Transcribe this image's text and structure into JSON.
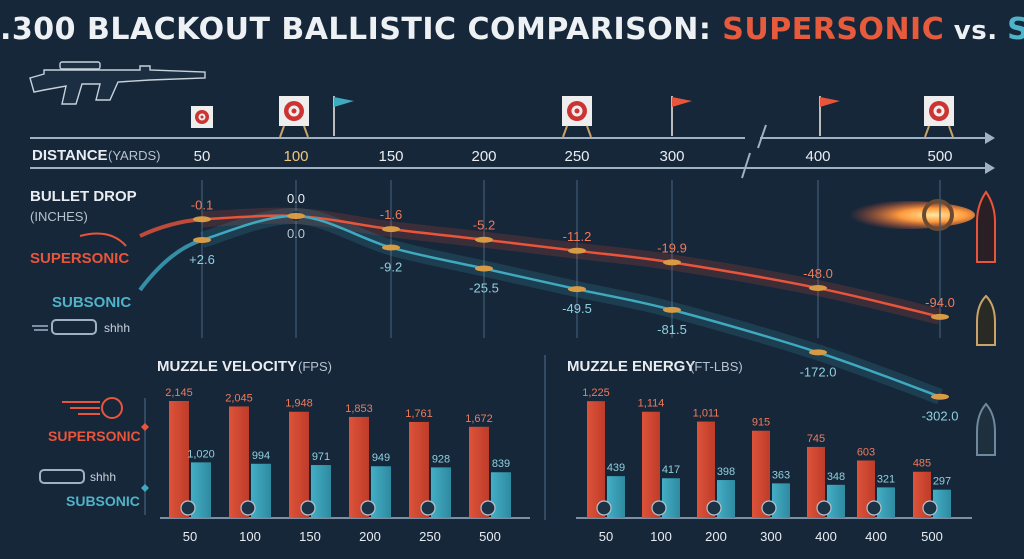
{
  "title": {
    "main": ".300 BLACKOUT BALLISTIC COMPARISON: ",
    "supersonic": "SUPERSONIC",
    "vs": " vs. ",
    "subsonic": "SUBSONIC"
  },
  "colors": {
    "background": "#16273a",
    "supersonic": "#e8553a",
    "subsonic": "#3fa9bf",
    "text": "#e9edf2",
    "grid": "#3d5670"
  },
  "distance_axis": {
    "label": "DISTANCE",
    "unit": "(YARDS)",
    "ticks": [
      "50",
      "100",
      "150",
      "200",
      "250",
      "300",
      "400",
      "500"
    ]
  },
  "side_labels": {
    "drop_label": "BULLET DROP",
    "drop_unit": "(INCHES)",
    "supersonic": "SUPERSONIC",
    "subsonic": "SUBSONIC",
    "shhh": "shhh"
  },
  "chart_data": [
    {
      "type": "line",
      "ylabel": "BULLET DROP (INCHES)",
      "xlabel": "DISTANCE (YARDS)",
      "x": [
        50,
        100,
        150,
        200,
        250,
        300,
        400,
        500
      ],
      "series": [
        {
          "name": "SUPERSONIC",
          "values": [
            -0.1,
            0.0,
            -1.6,
            -5.2,
            -11.2,
            -19.9,
            -48.0,
            -94.0
          ],
          "labels": [
            "-0.1",
            "0.0",
            "-1.6",
            "-5.2",
            "-11.2",
            "-19.9",
            "-48.0",
            "-94.0"
          ]
        },
        {
          "name": "SUBSONIC",
          "values": [
            2.6,
            0.0,
            -9.2,
            -25.5,
            -49.5,
            -81.5,
            -172.0,
            -302.0
          ],
          "labels": [
            "+2.6",
            "0.0",
            "-9.2",
            "-25.5",
            "-49.5",
            "-81.5",
            "-172.0",
            "-302.0"
          ]
        }
      ]
    },
    {
      "type": "bar",
      "title": "MUZZLE VELOCITY",
      "unit": "(FPS)",
      "categories": [
        "50",
        "100",
        "150",
        "200",
        "250",
        "500"
      ],
      "series": [
        {
          "name": "SUPERSONIC",
          "values": [
            2145,
            2045,
            1948,
            1853,
            1761,
            1672
          ],
          "labels": [
            "2,145",
            "2,045",
            "1,948",
            "1,853",
            "1,761",
            "1,672"
          ]
        },
        {
          "name": "SUBSONIC",
          "values": [
            1020,
            994,
            971,
            949,
            928,
            839
          ],
          "labels": [
            "1,020",
            "994",
            "971",
            "949",
            "928",
            "839"
          ]
        }
      ],
      "ylim": [
        0,
        2200
      ]
    },
    {
      "type": "bar",
      "title": "MUZZLE ENERGY",
      "unit": "(FT-LBS)",
      "categories": [
        "50",
        "100",
        "200",
        "300",
        "400",
        "400",
        "500"
      ],
      "series": [
        {
          "name": "SUPERSONIC",
          "values": [
            1225,
            1114,
            1011,
            915,
            745,
            603,
            485
          ],
          "labels": [
            "1,225",
            "1,114",
            "1,011",
            "915",
            "745",
            "603",
            "485"
          ]
        },
        {
          "name": "SUBSONIC",
          "values": [
            439,
            417,
            398,
            363,
            348,
            321,
            297
          ],
          "labels": [
            "439",
            "417",
            "398",
            "363",
            "348",
            "321",
            "297"
          ]
        }
      ],
      "ylim": [
        0,
        1300
      ]
    }
  ]
}
